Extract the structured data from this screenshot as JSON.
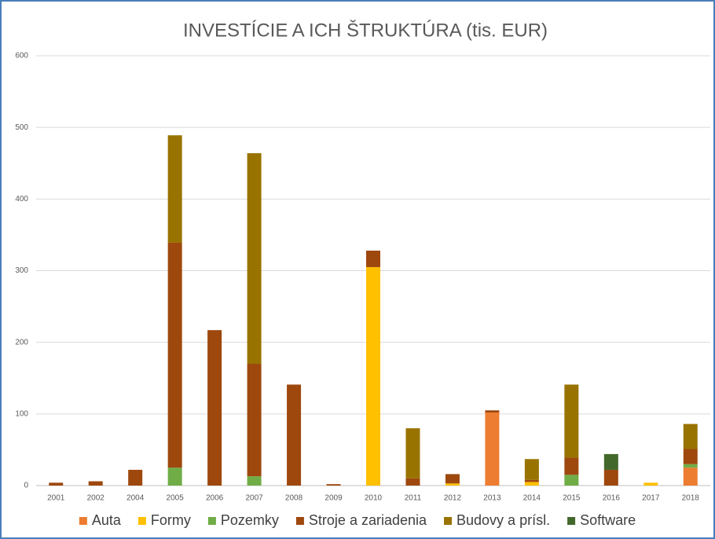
{
  "chart_data": {
    "type": "stacked-bar",
    "title": "INVESTÍCIE A ICH ŠTRUKTÚRA (tis. EUR)",
    "categories": [
      "2001",
      "2002",
      "2004",
      "2005",
      "2006",
      "2007",
      "2008",
      "2009",
      "2010",
      "2011",
      "2012",
      "2013",
      "2014",
      "2015",
      "2016",
      "2017",
      "2018"
    ],
    "series": [
      {
        "name": "Auta",
        "color": "#ed7d31",
        "values": [
          0,
          0,
          0,
          0,
          0,
          0,
          0,
          0,
          0,
          0,
          0,
          102,
          0,
          0,
          0,
          0,
          25
        ]
      },
      {
        "name": "Formy",
        "color": "#ffc000",
        "values": [
          0,
          0,
          0,
          0,
          0,
          0,
          0,
          0,
          305,
          0,
          3,
          0,
          5,
          0,
          0,
          4,
          0
        ]
      },
      {
        "name": "Pozemky",
        "color": "#70ad47",
        "values": [
          0,
          0,
          0,
          25,
          0,
          13,
          0,
          0,
          0,
          0,
          0,
          0,
          0,
          15,
          0,
          0,
          5
        ]
      },
      {
        "name": "Stroje a zariadenia",
        "color": "#9e480e",
        "values": [
          4,
          6,
          22,
          314,
          217,
          157,
          141,
          2,
          23,
          10,
          13,
          3,
          3,
          24,
          22,
          0,
          21
        ]
      },
      {
        "name": "Budovy a prísl.",
        "color": "#997300",
        "values": [
          0,
          0,
          0,
          150,
          0,
          294,
          0,
          0,
          0,
          70,
          0,
          0,
          29,
          102,
          0,
          0,
          35
        ]
      },
      {
        "name": "Software",
        "color": "#43682b",
        "values": [
          0,
          0,
          0,
          0,
          0,
          0,
          0,
          0,
          0,
          0,
          0,
          0,
          0,
          0,
          22,
          0,
          0
        ]
      }
    ],
    "ylim": [
      0,
      600
    ],
    "yticks": [
      0,
      100,
      200,
      300,
      400,
      500,
      600
    ],
    "grid": true,
    "legend": "bottom"
  }
}
